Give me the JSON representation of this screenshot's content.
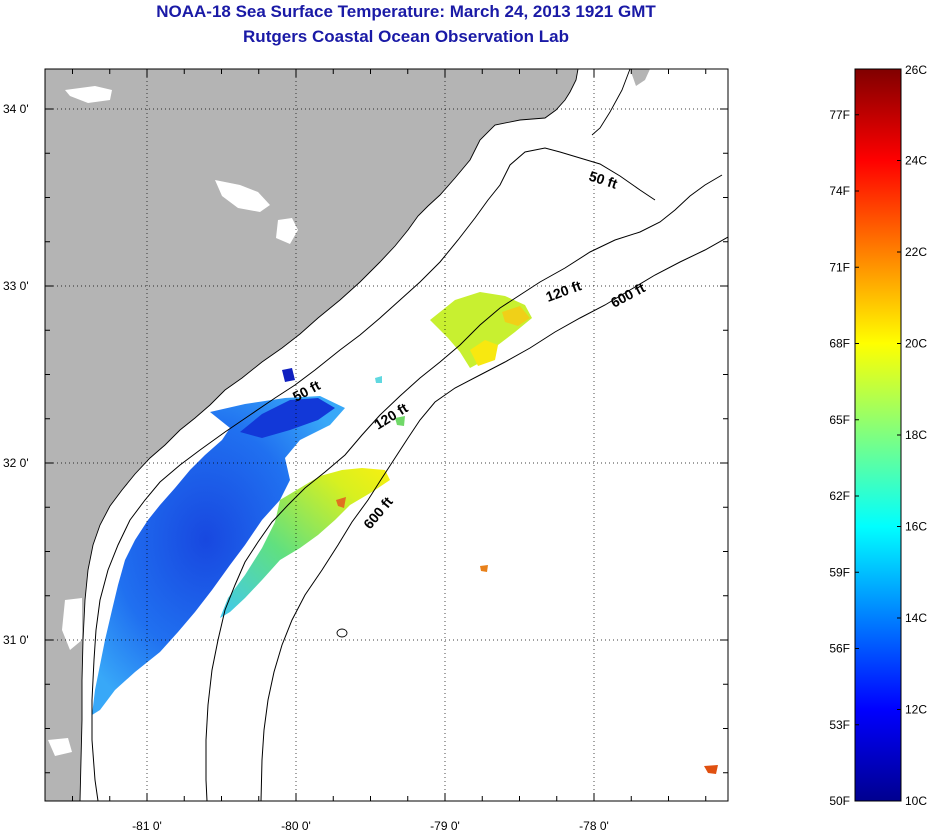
{
  "title": {
    "line1": "NOAA-18 Sea Surface Temperature:  March 24, 2013 1921 GMT",
    "line2": "Rutgers Coastal Ocean Observation Lab"
  },
  "map": {
    "lat_ticks": [
      {
        "value": 34.0,
        "label": "34 0'"
      },
      {
        "value": 33.0,
        "label": "33 0'"
      },
      {
        "value": 32.0,
        "label": "32 0'"
      },
      {
        "value": 31.0,
        "label": "31 0'"
      }
    ],
    "lon_ticks": [
      {
        "value": -81.0,
        "label": "-81 0'"
      },
      {
        "value": -80.0,
        "label": "-80 0'"
      },
      {
        "value": -79.0,
        "label": "-79 0'"
      },
      {
        "value": -78.0,
        "label": "-78 0'"
      }
    ],
    "land_color": "#b4b4b4",
    "ocean_color": "#ffffff",
    "gridline_style": "dotted",
    "contour_labels": [
      {
        "id": "c50a",
        "text": "50 ft"
      },
      {
        "id": "c50b",
        "text": "50 ft"
      },
      {
        "id": "c120a",
        "text": "120 ft"
      },
      {
        "id": "c120b",
        "text": "120 ft"
      },
      {
        "id": "c600a",
        "text": "600 ft"
      },
      {
        "id": "c600b",
        "text": "600 ft"
      }
    ]
  },
  "colorbar": {
    "colormap": "jet",
    "min_c": 10,
    "max_c": 26,
    "fahrenheit_labels": [
      "77F",
      "74F",
      "71F",
      "68F",
      "65F",
      "62F",
      "59F",
      "56F",
      "53F",
      "50F"
    ],
    "celsius_labels": [
      "26C",
      "24C",
      "22C",
      "20C",
      "18C",
      "16C",
      "14C",
      "12C",
      "10C"
    ]
  }
}
